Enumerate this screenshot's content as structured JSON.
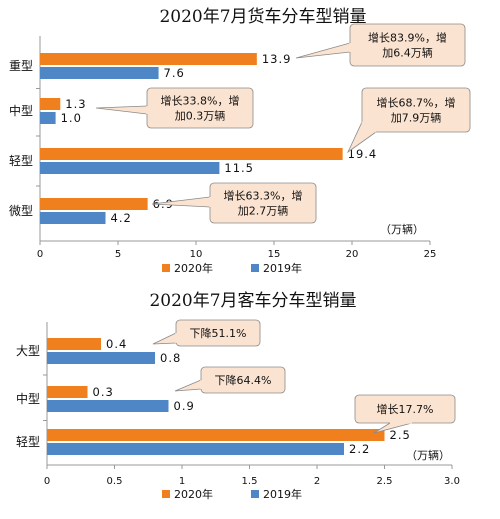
{
  "chart_data": [
    {
      "type": "bar",
      "orientation": "horizontal",
      "title": "2020年7月货车分车型销量",
      "categories": [
        "重型",
        "中型",
        "轻型",
        "微型"
      ],
      "series": [
        {
          "name": "2020年",
          "values": [
            13.9,
            1.3,
            19.4,
            6.9
          ],
          "labels": [
            "13.9",
            "1.3",
            "19.4",
            "6.9"
          ],
          "color": "#F07F1D"
        },
        {
          "name": "2019年",
          "values": [
            7.6,
            1.0,
            11.5,
            4.2
          ],
          "labels": [
            "7.6",
            "1.0",
            "11.5",
            "4.2"
          ],
          "color": "#4F86C6"
        }
      ],
      "xlim": [
        0,
        25
      ],
      "xticks": [
        0,
        5,
        10,
        15,
        20,
        25
      ],
      "xtick_labels": [
        "0",
        "5",
        "10",
        "15",
        "20",
        "25"
      ],
      "unit_label": "（万辆）",
      "legend_position": "bottom",
      "grid": false,
      "annotations": [
        {
          "category": "重型",
          "lines": [
            "增长83.9%，增",
            "加6.4万辆"
          ]
        },
        {
          "category": "中型",
          "lines": [
            "增长33.8%，增",
            "加0.3万辆"
          ]
        },
        {
          "category": "轻型",
          "lines": [
            "增长68.7%，增",
            "加7.9万辆"
          ]
        },
        {
          "category": "微型",
          "lines": [
            "增长63.3%，增",
            "加2.7万辆"
          ]
        }
      ]
    },
    {
      "type": "bar",
      "orientation": "horizontal",
      "title": "2020年7月客车分车型销量",
      "categories": [
        "大型",
        "中型",
        "轻型"
      ],
      "series": [
        {
          "name": "2020年",
          "values": [
            0.4,
            0.3,
            2.5
          ],
          "labels": [
            "0.4",
            "0.3",
            "2.5"
          ],
          "color": "#F07F1D"
        },
        {
          "name": "2019年",
          "values": [
            0.8,
            0.9,
            2.2
          ],
          "labels": [
            "0.8",
            "0.9",
            "2.2"
          ],
          "color": "#4F86C6"
        }
      ],
      "xlim": [
        0,
        3.0
      ],
      "xticks": [
        0,
        0.5,
        1.0,
        1.5,
        2.0,
        2.5,
        3.0
      ],
      "xtick_labels": [
        "0",
        "0.5",
        "1",
        "1.5",
        "2",
        "2.5",
        "3.0"
      ],
      "unit_label": "（万辆）",
      "legend_position": "bottom",
      "grid": false,
      "annotations": [
        {
          "category": "大型",
          "lines": [
            "下降51.1%"
          ]
        },
        {
          "category": "中型",
          "lines": [
            "下降64.4%"
          ]
        },
        {
          "category": "轻型",
          "lines": [
            "增长17.7%"
          ]
        }
      ]
    }
  ],
  "colors": {
    "callout_fill": "#FBE3D1",
    "callout_stroke": "#8A8A8A",
    "axis": "#999999"
  }
}
